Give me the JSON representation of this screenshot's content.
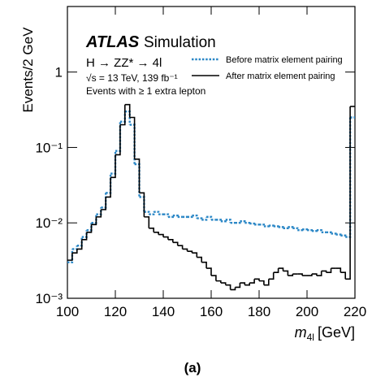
{
  "chart_data": {
    "type": "histogram",
    "experiment": "ATLAS",
    "experiment_label": "Simulation",
    "process": "H → ZZ* → 4l",
    "conditions": "√s = 13 TeV, 139 fb⁻¹",
    "selection": "Events with ≥ 1 extra lepton",
    "y_label": "Events/2 GeV",
    "x_label": {
      "symbol": "m",
      "subscript": "4l",
      "unit": "[GeV]"
    },
    "caption": "(a)",
    "bins": [
      100,
      102,
      104,
      106,
      108,
      110,
      112,
      114,
      116,
      118,
      120,
      122,
      124,
      126,
      128,
      130,
      132,
      134,
      136,
      138,
      140,
      142,
      144,
      146,
      148,
      150,
      152,
      154,
      156,
      158,
      160,
      162,
      164,
      166,
      168,
      170,
      172,
      174,
      176,
      178,
      180,
      182,
      184,
      186,
      188,
      190,
      192,
      194,
      196,
      198,
      200,
      202,
      204,
      206,
      208,
      210,
      212,
      214,
      216,
      218,
      220
    ],
    "series": [
      {
        "name": "Before matrix element pairing",
        "color": "#2b87c6",
        "style": "dotted",
        "values": [
          0.003,
          0.0045,
          0.005,
          0.0065,
          0.008,
          0.01,
          0.013,
          0.016,
          0.025,
          0.045,
          0.09,
          0.22,
          0.3,
          0.2,
          0.06,
          0.022,
          0.014,
          0.013,
          0.014,
          0.013,
          0.013,
          0.012,
          0.0125,
          0.012,
          0.012,
          0.012,
          0.0125,
          0.0115,
          0.011,
          0.012,
          0.011,
          0.011,
          0.0105,
          0.011,
          0.01,
          0.01,
          0.0105,
          0.01,
          0.0098,
          0.0095,
          0.0095,
          0.009,
          0.0092,
          0.009,
          0.0088,
          0.0085,
          0.0088,
          0.0085,
          0.008,
          0.0082,
          0.008,
          0.0078,
          0.008,
          0.0075,
          0.0075,
          0.0072,
          0.007,
          0.0068,
          0.0065,
          0.25
        ]
      },
      {
        "name": "After matrix element pairing",
        "color": "#000000",
        "style": "solid",
        "values": [
          0.0032,
          0.004,
          0.0045,
          0.006,
          0.0075,
          0.0095,
          0.012,
          0.015,
          0.022,
          0.04,
          0.08,
          0.2,
          0.37,
          0.25,
          0.07,
          0.025,
          0.012,
          0.0085,
          0.0075,
          0.007,
          0.0065,
          0.006,
          0.0055,
          0.005,
          0.0045,
          0.0042,
          0.004,
          0.0035,
          0.003,
          0.0025,
          0.002,
          0.0017,
          0.0016,
          0.0015,
          0.0013,
          0.0014,
          0.0016,
          0.0015,
          0.0016,
          0.0018,
          0.0017,
          0.0015,
          0.0018,
          0.0022,
          0.0025,
          0.0023,
          0.002,
          0.0021,
          0.0021,
          0.002,
          0.002,
          0.0021,
          0.002,
          0.0023,
          0.0022,
          0.0025,
          0.0025,
          0.0022,
          0.0018,
          0.35
        ]
      }
    ],
    "xlim": [
      100,
      220
    ],
    "xticks": [
      100,
      120,
      140,
      160,
      180,
      200,
      220
    ],
    "ylim": [
      0.001,
      7.4
    ],
    "log_y": true,
    "yticks": [
      {
        "value": 0.001,
        "label": "10⁻³"
      },
      {
        "value": 0.01,
        "label": "10⁻²"
      },
      {
        "value": 0.1,
        "label": "10⁻¹"
      },
      {
        "value": 1,
        "label": "1"
      }
    ],
    "grid": false,
    "legend": "upper right"
  }
}
